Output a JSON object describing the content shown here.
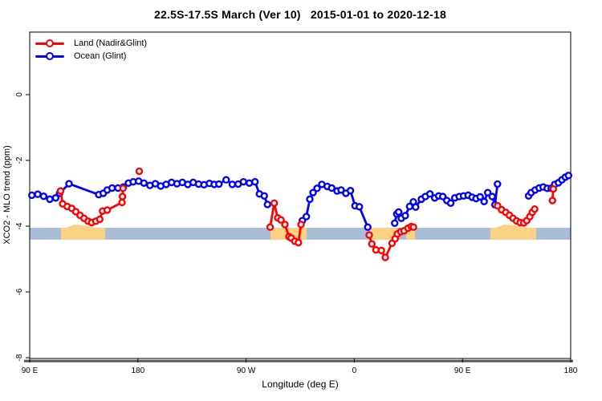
{
  "header": {
    "title": "22.5S-17.5S March (Ver 10)   2015-01-01 to 2020-12-18"
  },
  "legend": {
    "items": [
      {
        "label": "Land (Nadir&Glint)",
        "color": "#ff0000"
      },
      {
        "label": "Ocean (Glint)",
        "color": "#0000ff"
      }
    ]
  },
  "chart_data": {
    "type": "line",
    "title": "22.5S-17.5S March (Ver 10)   2015-01-01 to 2020-12-18",
    "xlabel": "Longitude (deg E)",
    "ylabel": "XCO2 - MLO trend (ppm)",
    "x_axis": {
      "range": [
        90,
        540
      ],
      "note": "axis wraps eastward from 90E through 180, 90W, 0, 90E to 180",
      "ticks": [
        {
          "pos": 90,
          "label": "90 E"
        },
        {
          "pos": 180,
          "label": "180"
        },
        {
          "pos": 270,
          "label": "90 W"
        },
        {
          "pos": 360,
          "label": "0"
        },
        {
          "pos": 450,
          "label": "90 E"
        },
        {
          "pos": 540,
          "label": "180"
        }
      ]
    },
    "y_axis": {
      "range": [
        -8,
        0
      ],
      "ticks": [
        {
          "pos": 0,
          "label": "0"
        },
        {
          "pos": -2,
          "label": "-2"
        },
        {
          "pos": -4,
          "label": "-4"
        },
        {
          "pos": -6,
          "label": "-6"
        },
        {
          "pos": -8,
          "label": "-8"
        }
      ]
    },
    "reference_band": {
      "color": "#a9bdd8",
      "value_range": [
        -4.05,
        -4.41
      ]
    },
    "land_patches": {
      "color": "#fbd183",
      "ranges": [
        {
          "start": 116.0,
          "end": 152.8,
          "bump": true
        },
        {
          "start": 290.3,
          "end": 320.3,
          "bump": false
        },
        {
          "start": 373.1,
          "end": 395.1,
          "bump": false
        },
        {
          "start": 403.1,
          "end": 410.5,
          "bump": false
        },
        {
          "start": 473.2,
          "end": 511.3,
          "bump": true
        }
      ]
    },
    "baseline": {
      "color": "#555555",
      "value": -8.1
    },
    "series": [
      {
        "name": "Ocean (Glint)",
        "color": "#0000ff",
        "points": [
          [
            91.8,
            -3.06
          ],
          [
            96.7,
            -3.03
          ],
          [
            101.6,
            -3.09
          ],
          [
            106.7,
            -3.18
          ],
          [
            111.6,
            -3.14
          ],
          [
            114.9,
            -3.0
          ],
          [
            122.7,
            -2.71
          ],
          [
            147.4,
            -3.04
          ],
          [
            151.2,
            -3.0
          ],
          [
            154.5,
            -2.9
          ],
          [
            158.5,
            -2.84
          ],
          [
            163.4,
            -2.84
          ],
          [
            167.9,
            -2.81
          ],
          [
            172.1,
            -2.69
          ],
          [
            176.1,
            -2.65
          ],
          [
            180.6,
            -2.63
          ],
          [
            185.0,
            -2.69
          ],
          [
            190.0,
            -2.76
          ],
          [
            194.5,
            -2.71
          ],
          [
            199.0,
            -2.78
          ],
          [
            203.5,
            -2.73
          ],
          [
            208.0,
            -2.67
          ],
          [
            212.5,
            -2.71
          ],
          [
            217.0,
            -2.67
          ],
          [
            221.5,
            -2.73
          ],
          [
            226.0,
            -2.67
          ],
          [
            230.5,
            -2.72
          ],
          [
            235.0,
            -2.74
          ],
          [
            239.5,
            -2.7
          ],
          [
            243.5,
            -2.73
          ],
          [
            247.4,
            -2.72
          ],
          [
            253.4,
            -2.59
          ],
          [
            258.5,
            -2.73
          ],
          [
            263.4,
            -2.72
          ],
          [
            267.8,
            -2.65
          ],
          [
            272.7,
            -2.69
          ],
          [
            277.4,
            -2.65
          ],
          [
            281.1,
            -3.02
          ],
          [
            285.1,
            -3.08
          ],
          [
            287.8,
            -3.34
          ],
          null,
          [
            316.8,
            -3.83
          ],
          [
            320.1,
            -3.71
          ],
          [
            323.0,
            -3.18
          ],
          [
            325.7,
            -2.98
          ],
          [
            329.0,
            -2.85
          ],
          [
            333.0,
            -2.73
          ],
          [
            337.5,
            -2.79
          ],
          [
            341.2,
            -2.84
          ],
          [
            345.7,
            -2.93
          ],
          [
            349.0,
            -2.9
          ],
          [
            353.0,
            -3.0
          ],
          [
            356.8,
            -2.92
          ],
          [
            360.6,
            -3.38
          ],
          [
            364.2,
            -3.41
          ],
          [
            371.2,
            -4.03
          ],
          null,
          [
            393.6,
            -3.91
          ],
          [
            395.3,
            -3.63
          ],
          [
            396.9,
            -3.57
          ],
          [
            399.1,
            -3.76
          ],
          [
            402.4,
            -3.68
          ],
          [
            406.0,
            -3.4
          ],
          [
            409.1,
            -3.26
          ],
          [
            411.0,
            -3.42
          ],
          [
            415.8,
            -3.18
          ],
          [
            419.1,
            -3.1
          ],
          [
            422.9,
            -3.02
          ],
          [
            426.9,
            -3.14
          ],
          [
            430.2,
            -3.08
          ],
          [
            433.6,
            -3.1
          ],
          [
            437.0,
            -3.22
          ],
          [
            440.2,
            -3.3
          ],
          [
            443.6,
            -3.14
          ],
          [
            447.3,
            -3.1
          ],
          [
            450.9,
            -3.08
          ],
          [
            454.7,
            -3.06
          ],
          [
            458.0,
            -3.12
          ],
          [
            461.3,
            -3.16
          ],
          [
            464.7,
            -3.11
          ],
          [
            468.0,
            -3.25
          ],
          [
            471.0,
            -2.98
          ],
          [
            474.7,
            -3.1
          ],
          [
            477.0,
            -3.35
          ],
          [
            479.1,
            -2.72
          ],
          null,
          [
            505.0,
            -3.08
          ],
          [
            507.1,
            -2.98
          ],
          [
            510.4,
            -2.9
          ],
          [
            513.8,
            -2.84
          ],
          [
            517.1,
            -2.81
          ],
          [
            520.5,
            -2.85
          ],
          [
            523.8,
            -2.85
          ],
          [
            526.7,
            -2.73
          ],
          [
            529.8,
            -2.68
          ],
          [
            532.7,
            -2.59
          ],
          [
            535.5,
            -2.51
          ],
          [
            538.2,
            -2.46
          ]
        ]
      },
      {
        "name": "Land (Nadir&Glint)",
        "color": "#ff0000",
        "points": [
          [
            115.7,
            -2.93
          ],
          [
            117.4,
            -3.32
          ],
          [
            121.2,
            -3.4
          ],
          [
            125.0,
            -3.46
          ],
          [
            128.3,
            -3.56
          ],
          [
            131.9,
            -3.67
          ],
          [
            135.2,
            -3.76
          ],
          [
            138.6,
            -3.85
          ],
          [
            141.6,
            -3.89
          ],
          [
            145.0,
            -3.85
          ],
          [
            148.3,
            -3.79
          ],
          [
            150.6,
            -3.54
          ],
          [
            154.5,
            -3.51
          ],
          [
            166.8,
            -3.28
          ],
          [
            167.2,
            -3.1
          ],
          [
            167.6,
            -2.85
          ],
          null,
          [
            181.1,
            -2.33
          ],
          null,
          [
            290.0,
            -4.03
          ],
          [
            293.4,
            -3.3
          ],
          [
            296.3,
            -3.75
          ],
          [
            299.0,
            -3.81
          ],
          [
            302.3,
            -3.95
          ],
          [
            305.7,
            -4.32
          ],
          [
            307.5,
            -4.36
          ],
          [
            310.5,
            -4.46
          ],
          [
            313.5,
            -4.5
          ],
          [
            315.7,
            -3.95
          ],
          null,
          [
            372.4,
            -4.27
          ],
          [
            374.6,
            -4.54
          ],
          [
            378.0,
            -4.72
          ],
          [
            382.5,
            -4.74
          ],
          [
            385.8,
            -4.95
          ],
          [
            391.4,
            -4.52
          ],
          [
            394.0,
            -4.38
          ],
          [
            395.8,
            -4.24
          ],
          [
            398.7,
            -4.17
          ],
          [
            401.4,
            -4.14
          ],
          [
            404.7,
            -4.06
          ],
          [
            407.4,
            -4.01
          ],
          [
            409.2,
            -4.03
          ],
          null,
          [
            479.2,
            -3.38
          ],
          [
            482.5,
            -3.5
          ],
          [
            486.0,
            -3.58
          ],
          [
            489.0,
            -3.67
          ],
          [
            492.0,
            -3.76
          ],
          [
            495.0,
            -3.84
          ],
          [
            498.0,
            -3.89
          ],
          [
            501.0,
            -3.9
          ],
          [
            503.5,
            -3.83
          ],
          [
            506.0,
            -3.71
          ],
          [
            508.0,
            -3.58
          ],
          [
            510.0,
            -3.48
          ],
          null,
          [
            524.8,
            -3.22
          ],
          [
            525.5,
            -2.87
          ]
        ]
      }
    ]
  }
}
